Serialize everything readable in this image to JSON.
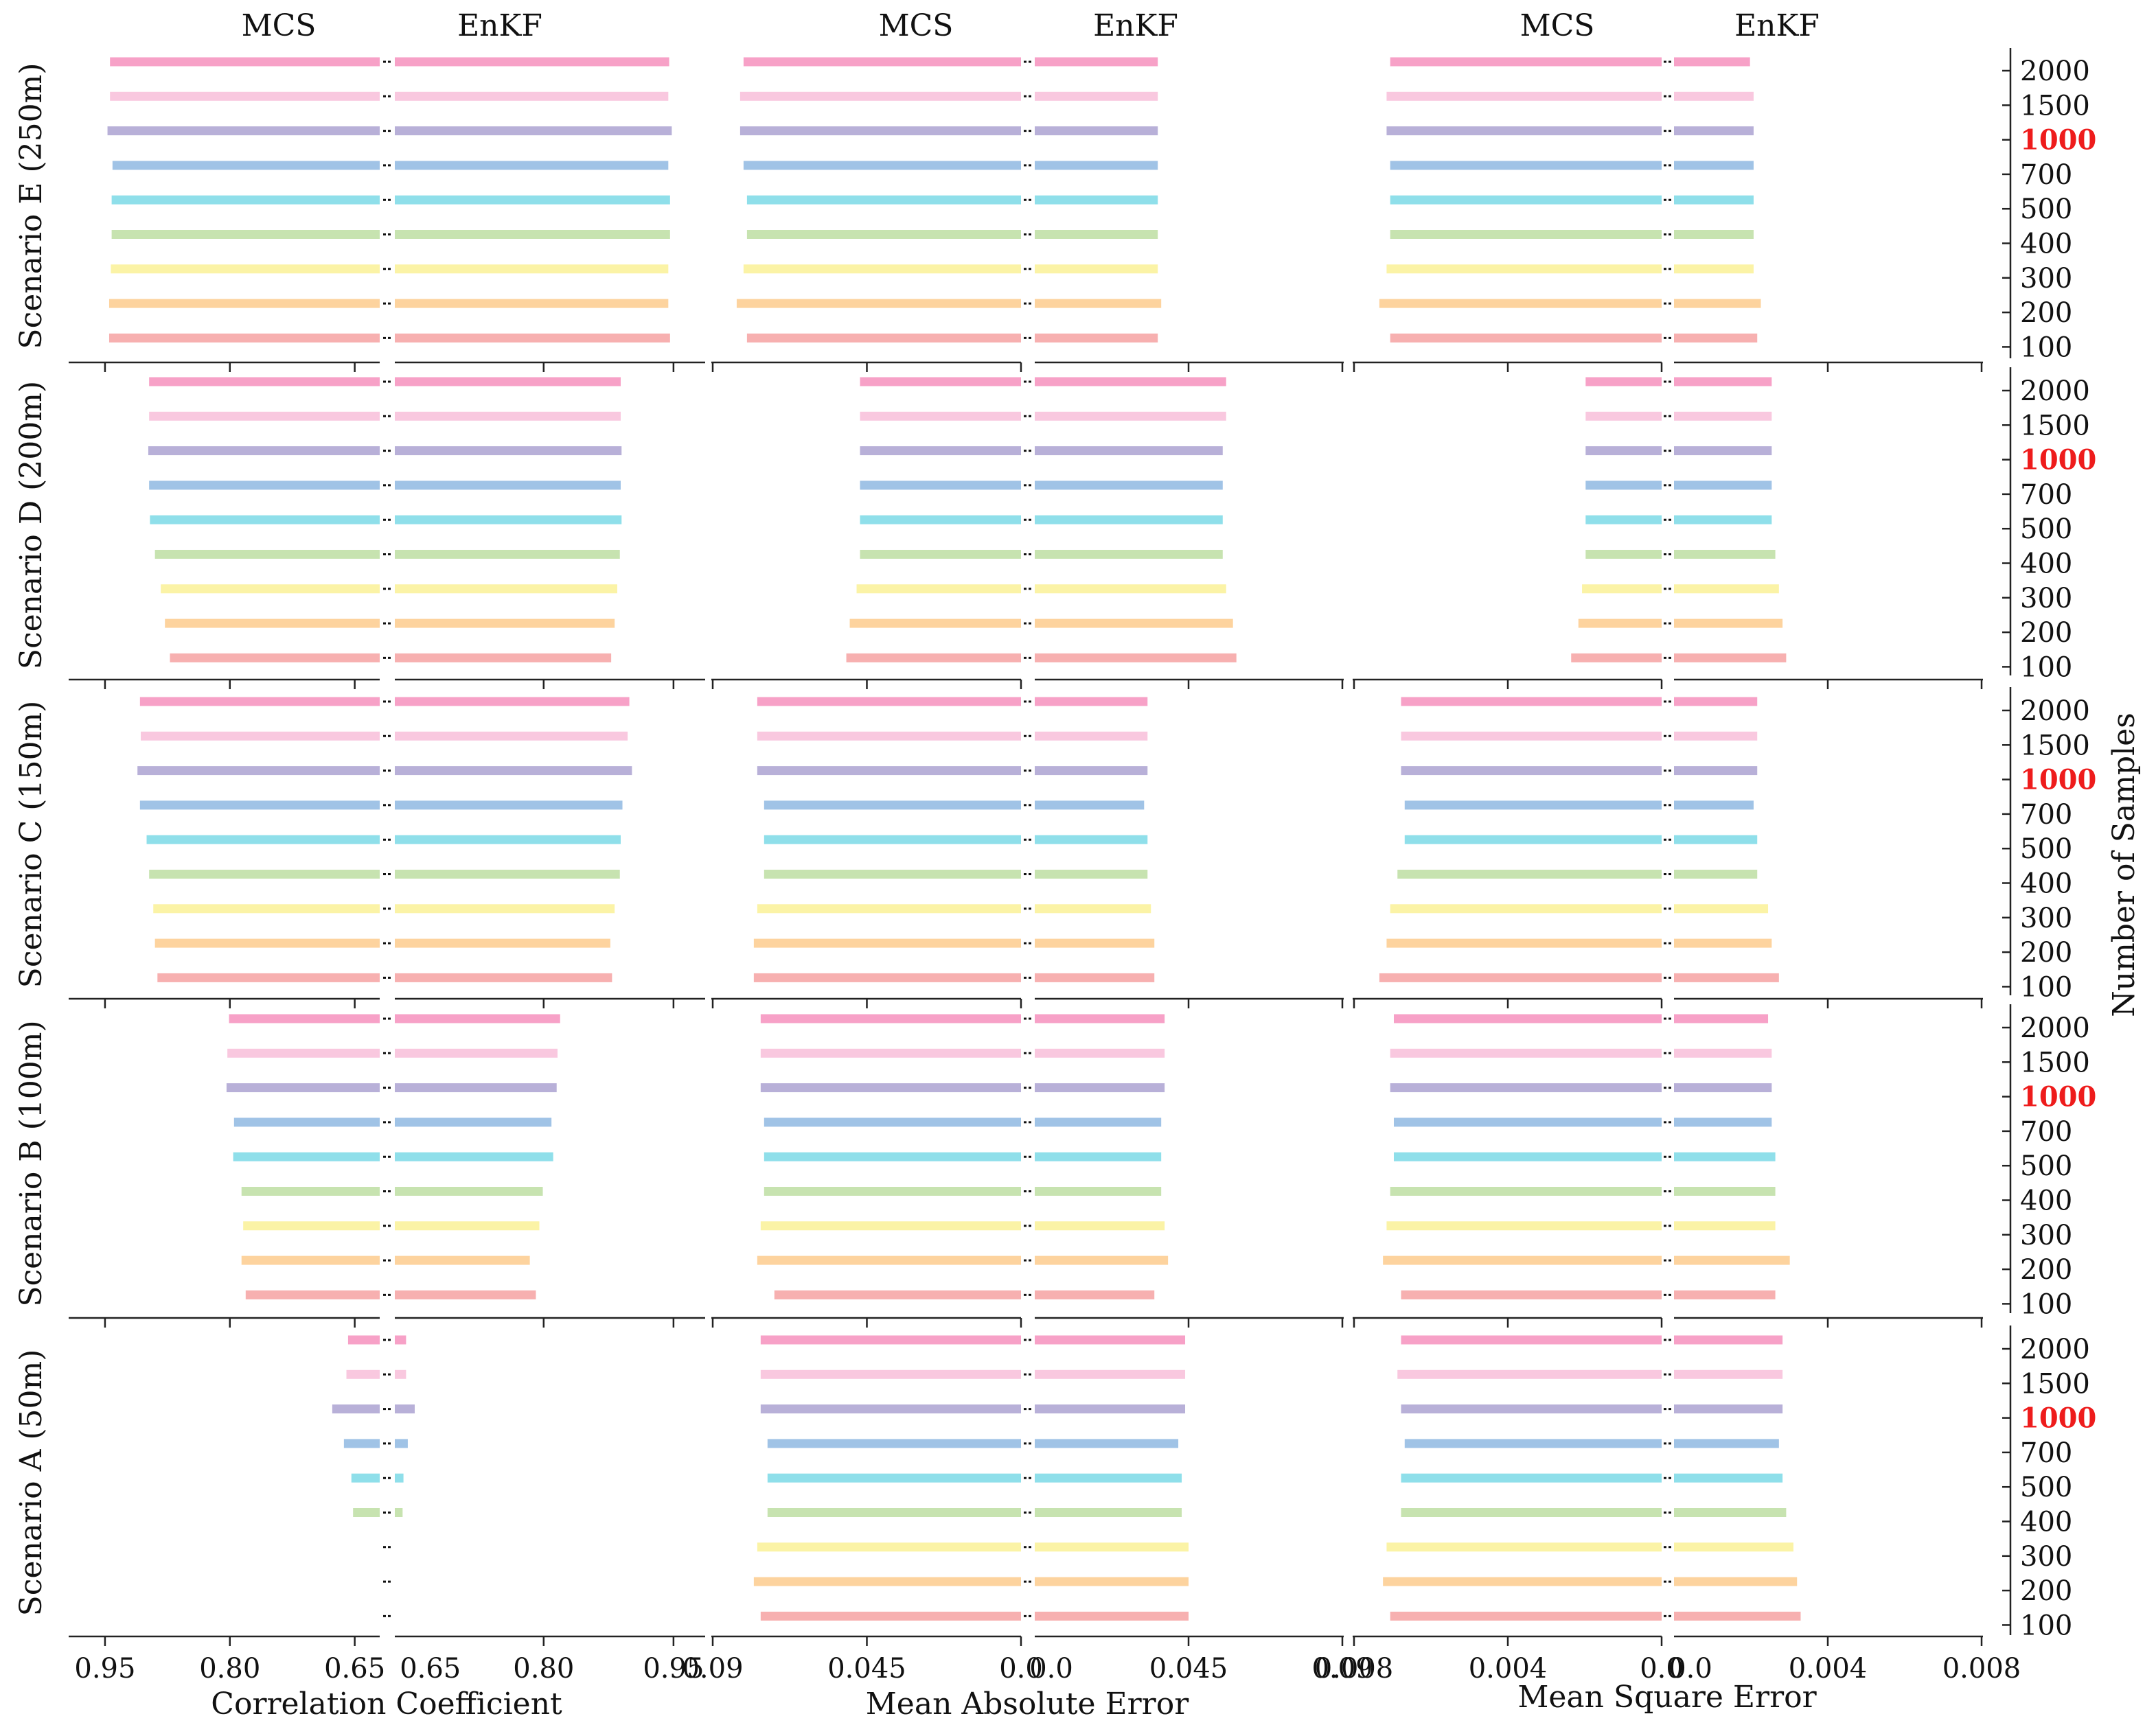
{
  "chart_data": {
    "type": "bar",
    "orientation": "horizontal-mirrored",
    "samples": [
      "100",
      "200",
      "300",
      "400",
      "500",
      "700",
      "1000",
      "1500",
      "2000"
    ],
    "highlight_sample": "1000",
    "highlight_color": "#ee1c1c",
    "sample_colors": [
      "#f7b0b0",
      "#fdd39e",
      "#fbf3a6",
      "#c7e3b0",
      "#8fdfea",
      "#a0c3e6",
      "#b8b0d8",
      "#f9c8df",
      "#f7a1c7"
    ],
    "y_axis_label": "Number of Samples",
    "scenarios": [
      {
        "label": "Scenario E (250m)"
      },
      {
        "label": "Scenario D (200m)"
      },
      {
        "label": "Scenario C (150m)"
      },
      {
        "label": "Scenario B (100m)"
      },
      {
        "label": "Scenario A (50m)"
      }
    ],
    "metrics": [
      {
        "name": "Correlation Coefficient",
        "left_title": "MCS",
        "right_title": "EnKF",
        "left_ticks": [
          "0.95",
          "0.80",
          "0.65"
        ],
        "right_ticks": [
          "0.65",
          "0.80",
          "0.95"
        ],
        "left_range": [
          0.992,
          0.62
        ],
        "right_range": [
          0.628,
          0.985
        ],
        "mcs": [
          [
            0.945,
            0.945,
            0.943,
            0.942,
            0.942,
            0.941,
            0.947,
            0.944,
            0.944
          ],
          [
            0.872,
            0.878,
            0.883,
            0.89,
            0.896,
            0.897,
            0.898,
            0.897,
            0.897
          ],
          [
            0.887,
            0.89,
            0.892,
            0.897,
            0.9,
            0.908,
            0.911,
            0.907,
            0.908
          ],
          [
            0.781,
            0.786,
            0.784,
            0.786,
            0.796,
            0.795,
            0.804,
            0.803,
            0.801
          ],
          [
            0,
            0,
            0,
            0.652,
            0.654,
            0.663,
            0.677,
            0.66,
            0.658
          ]
        ],
        "enkf": [
          [
            0.946,
            0.944,
            0.944,
            0.946,
            0.946,
            0.944,
            0.948,
            0.944,
            0.945
          ],
          [
            0.878,
            0.882,
            0.885,
            0.888,
            0.89,
            0.889,
            0.89,
            0.889,
            0.889
          ],
          [
            0.879,
            0.877,
            0.882,
            0.888,
            0.889,
            0.891,
            0.902,
            0.897,
            0.899
          ],
          [
            0.791,
            0.784,
            0.795,
            0.799,
            0.811,
            0.809,
            0.815,
            0.816,
            0.819
          ],
          [
            0,
            0,
            0,
            0.637,
            0.638,
            0.643,
            0.651,
            0.641,
            0.641
          ]
        ]
      },
      {
        "name": "Mean Absolute Error",
        "left_title": "MCS",
        "right_title": "EnKF",
        "left_ticks": [
          "0.09",
          "0.045",
          "0.0"
        ],
        "right_ticks": [
          "0.0",
          "0.045",
          "0.09"
        ],
        "left_range": [
          0.09,
          0.0
        ],
        "right_range": [
          0.0,
          0.09
        ],
        "mcs": [
          [
            0.08,
            0.083,
            0.081,
            0.08,
            0.08,
            0.081,
            0.082,
            0.082,
            0.081
          ],
          [
            0.051,
            0.05,
            0.048,
            0.047,
            0.047,
            0.047,
            0.047,
            0.047,
            0.047
          ],
          [
            0.078,
            0.078,
            0.077,
            0.075,
            0.075,
            0.075,
            0.077,
            0.077,
            0.077
          ],
          [
            0.072,
            0.077,
            0.076,
            0.075,
            0.075,
            0.075,
            0.076,
            0.076,
            0.076
          ],
          [
            0.076,
            0.078,
            0.077,
            0.074,
            0.074,
            0.074,
            0.076,
            0.076,
            0.076
          ]
        ],
        "enkf": [
          [
            0.036,
            0.037,
            0.036,
            0.036,
            0.036,
            0.036,
            0.036,
            0.036,
            0.036
          ],
          [
            0.059,
            0.058,
            0.056,
            0.055,
            0.055,
            0.055,
            0.055,
            0.056,
            0.056
          ],
          [
            0.035,
            0.035,
            0.034,
            0.033,
            0.033,
            0.032,
            0.033,
            0.033,
            0.033
          ],
          [
            0.035,
            0.039,
            0.038,
            0.037,
            0.037,
            0.037,
            0.038,
            0.038,
            0.038
          ],
          [
            0.045,
            0.045,
            0.045,
            0.043,
            0.043,
            0.042,
            0.044,
            0.044,
            0.044
          ]
        ]
      },
      {
        "name": "Mean Square Error",
        "left_title": "MCS",
        "right_title": "EnKF",
        "left_ticks": [
          "0.008",
          "0.004",
          "0.0"
        ],
        "right_ticks": [
          "0.0",
          "0.004",
          "0.008"
        ],
        "left_range": [
          0.0085,
          0.0
        ],
        "right_range": [
          0.0,
          0.0085
        ],
        "mcs": [
          [
            0.0075,
            0.0078,
            0.0076,
            0.0075,
            0.0075,
            0.0075,
            0.0076,
            0.0076,
            0.0075
          ],
          [
            0.0025,
            0.0023,
            0.0022,
            0.0021,
            0.0021,
            0.0021,
            0.0021,
            0.0021,
            0.0021
          ],
          [
            0.0078,
            0.0076,
            0.0075,
            0.0073,
            0.0071,
            0.0071,
            0.0072,
            0.0072,
            0.0072
          ],
          [
            0.0072,
            0.0077,
            0.0076,
            0.0075,
            0.0074,
            0.0074,
            0.0075,
            0.0075,
            0.0074
          ],
          [
            0.0075,
            0.0077,
            0.0076,
            0.0072,
            0.0072,
            0.0071,
            0.0072,
            0.0073,
            0.0072
          ]
        ],
        "enkf": [
          [
            0.0023,
            0.0024,
            0.0022,
            0.0022,
            0.0022,
            0.0022,
            0.0022,
            0.0022,
            0.0021
          ],
          [
            0.0031,
            0.003,
            0.0029,
            0.0028,
            0.0027,
            0.0027,
            0.0027,
            0.0027,
            0.0027
          ],
          [
            0.0029,
            0.0027,
            0.0026,
            0.0023,
            0.0023,
            0.0022,
            0.0023,
            0.0023,
            0.0023
          ],
          [
            0.0028,
            0.0032,
            0.0028,
            0.0028,
            0.0028,
            0.0027,
            0.0027,
            0.0027,
            0.0026
          ],
          [
            0.0035,
            0.0034,
            0.0033,
            0.0031,
            0.003,
            0.0029,
            0.003,
            0.003,
            0.003
          ]
        ]
      }
    ]
  }
}
